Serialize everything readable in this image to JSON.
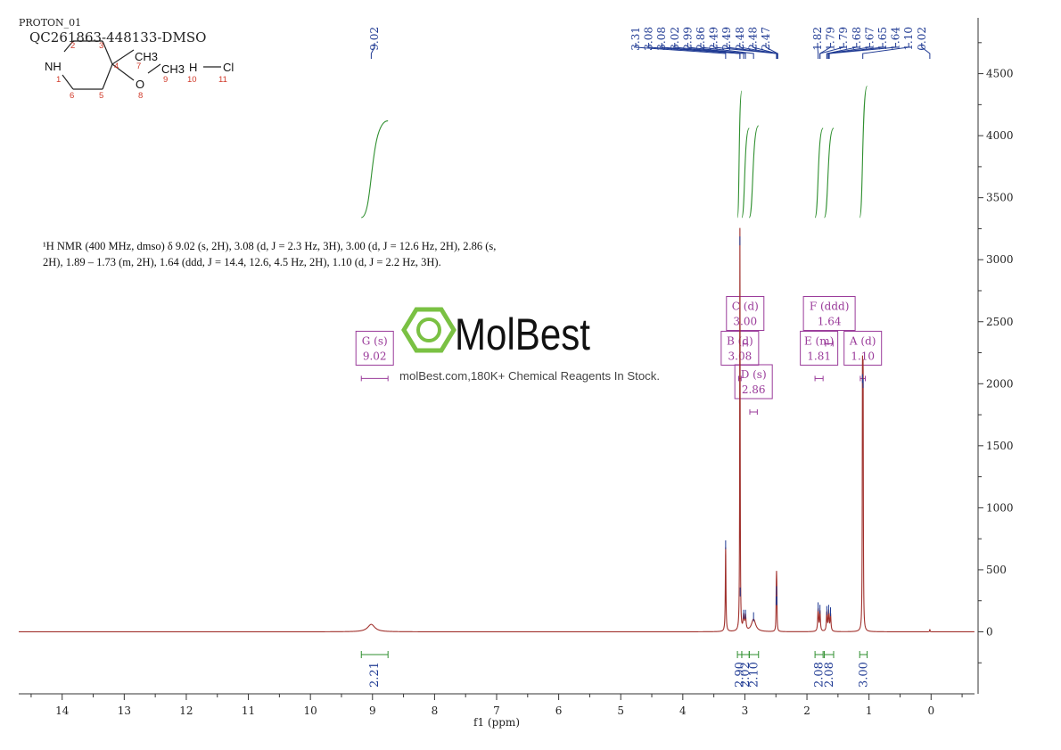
{
  "header": {
    "experiment": "PROTON_01",
    "sample": "QC261863-448133-DMSO"
  },
  "structure": {
    "labels": {
      "nh": "NH",
      "ch3_top": "CH3",
      "o": "O",
      "ch3_right": "CH3",
      "h": "H",
      "cl": "Cl"
    },
    "atom_numbers": [
      "1",
      "2",
      "3",
      "4",
      "5",
      "6",
      "7",
      "8",
      "9",
      "10",
      "11"
    ]
  },
  "nmr_text": {
    "line1": "¹H NMR (400 MHz, dmso) δ 9.02 (s, 2H), 3.08 (d, J = 2.3 Hz, 3H), 3.00 (d, J = 12.6 Hz, 2H), 2.86 (s,",
    "line2": "2H), 1.89 – 1.73 (m, 2H), 1.64 (ddd, J = 14.4, 12.6, 4.5 Hz, 2H), 1.10 (d, J = 2.2 Hz, 3H)."
  },
  "watermark": {
    "brand": "MolBest",
    "tagline": "molBest.com,180K+ Chemical Reagents In Stock."
  },
  "colors": {
    "spectrum": "#a0302c",
    "integral": "#2f8f2f",
    "peak_label": "#1f3a93",
    "multiplet_box": "#9a3b9a",
    "logo_green": "#7ac143",
    "axis": "#333333"
  },
  "chart_data": {
    "type": "line",
    "xlabel": "f1 (ppm)",
    "ylabel": "",
    "xlim": [
      14.7,
      -0.7
    ],
    "ylim": [
      -500,
      4950
    ],
    "x_ticks": [
      14,
      13,
      12,
      11,
      10,
      9,
      8,
      7,
      6,
      5,
      4,
      3,
      2,
      1,
      0
    ],
    "y_ticks": [
      0,
      500,
      1000,
      1500,
      2000,
      2500,
      3000,
      3500,
      4000,
      4500
    ],
    "peak_labels": [
      "9.02",
      "3.31",
      "3.08",
      "3.08",
      "3.02",
      "2.99",
      "2.86",
      "2.49",
      "2.49",
      "2.48",
      "2.48",
      "2.47",
      "1.82",
      "1.79",
      "1.79",
      "1.68",
      "1.67",
      "1.65",
      "1.64",
      "1.10",
      "0.02"
    ],
    "peaks": [
      {
        "ppm": 9.02,
        "height": 60,
        "width": 0.07
      },
      {
        "ppm": 3.31,
        "height": 680,
        "width": 0.006
      },
      {
        "ppm": 3.08,
        "height": 3130,
        "width": 0.004
      },
      {
        "ppm": 3.075,
        "height": 300,
        "width": 0.004
      },
      {
        "ppm": 3.02,
        "height": 120,
        "width": 0.01
      },
      {
        "ppm": 2.99,
        "height": 120,
        "width": 0.01
      },
      {
        "ppm": 2.86,
        "height": 100,
        "width": 0.04
      },
      {
        "ppm": 2.495,
        "height": 230,
        "width": 0.004
      },
      {
        "ppm": 2.49,
        "height": 310,
        "width": 0.004
      },
      {
        "ppm": 2.485,
        "height": 230,
        "width": 0.004
      },
      {
        "ppm": 1.82,
        "height": 180,
        "width": 0.008
      },
      {
        "ppm": 1.79,
        "height": 160,
        "width": 0.008
      },
      {
        "ppm": 1.68,
        "height": 150,
        "width": 0.008
      },
      {
        "ppm": 1.65,
        "height": 160,
        "width": 0.008
      },
      {
        "ppm": 1.62,
        "height": 140,
        "width": 0.008
      },
      {
        "ppm": 1.105,
        "height": 2020,
        "width": 0.004
      },
      {
        "ppm": 1.095,
        "height": 1980,
        "width": 0.004
      },
      {
        "ppm": 0.02,
        "height": 20,
        "width": 0.004
      }
    ],
    "integrals": [
      {
        "from": 9.18,
        "to": 8.75,
        "value": "2.21",
        "curve_start": 3340,
        "curve_end": 4120
      },
      {
        "from": 3.12,
        "to": 3.05,
        "value": "2.90",
        "curve_start": 3340,
        "curve_end": 4360
      },
      {
        "from": 3.05,
        "to": 2.93,
        "value": "2.02",
        "curve_start": 3340,
        "curve_end": 4060
      },
      {
        "from": 2.93,
        "to": 2.78,
        "value": "2.10",
        "curve_start": 3340,
        "curve_end": 4080
      },
      {
        "from": 1.87,
        "to": 1.74,
        "value": "2.08",
        "curve_start": 3340,
        "curve_end": 4060
      },
      {
        "from": 1.72,
        "to": 1.57,
        "value": "2.08",
        "curve_start": 3340,
        "curve_end": 4060
      },
      {
        "from": 1.15,
        "to": 1.03,
        "value": "3.00",
        "curve_start": 3340,
        "curve_end": 4400
      }
    ],
    "multiplets": [
      {
        "letter": "G",
        "mult": "(s)",
        "shift": "9.02",
        "from": 9.18,
        "to": 8.75,
        "yval": 2150
      },
      {
        "letter": "B",
        "mult": "(d)",
        "shift": "3.08",
        "from": 3.1,
        "to": 3.06,
        "yval": 2150
      },
      {
        "letter": "C",
        "mult": "(d)",
        "shift": "3.00",
        "from": 3.03,
        "to": 2.96,
        "yval": 2430
      },
      {
        "letter": "D",
        "mult": "(s)",
        "shift": "2.86",
        "from": 2.92,
        "to": 2.8,
        "yval": 1880
      },
      {
        "letter": "E",
        "mult": "(m)",
        "shift": "1.81",
        "from": 1.87,
        "to": 1.74,
        "yval": 2150
      },
      {
        "letter": "F",
        "mult": "(ddd)",
        "shift": "1.64",
        "from": 1.7,
        "to": 1.58,
        "yval": 2430
      },
      {
        "letter": "A",
        "mult": "(d)",
        "shift": "1.10",
        "from": 1.14,
        "to": 1.06,
        "yval": 2150
      }
    ]
  }
}
